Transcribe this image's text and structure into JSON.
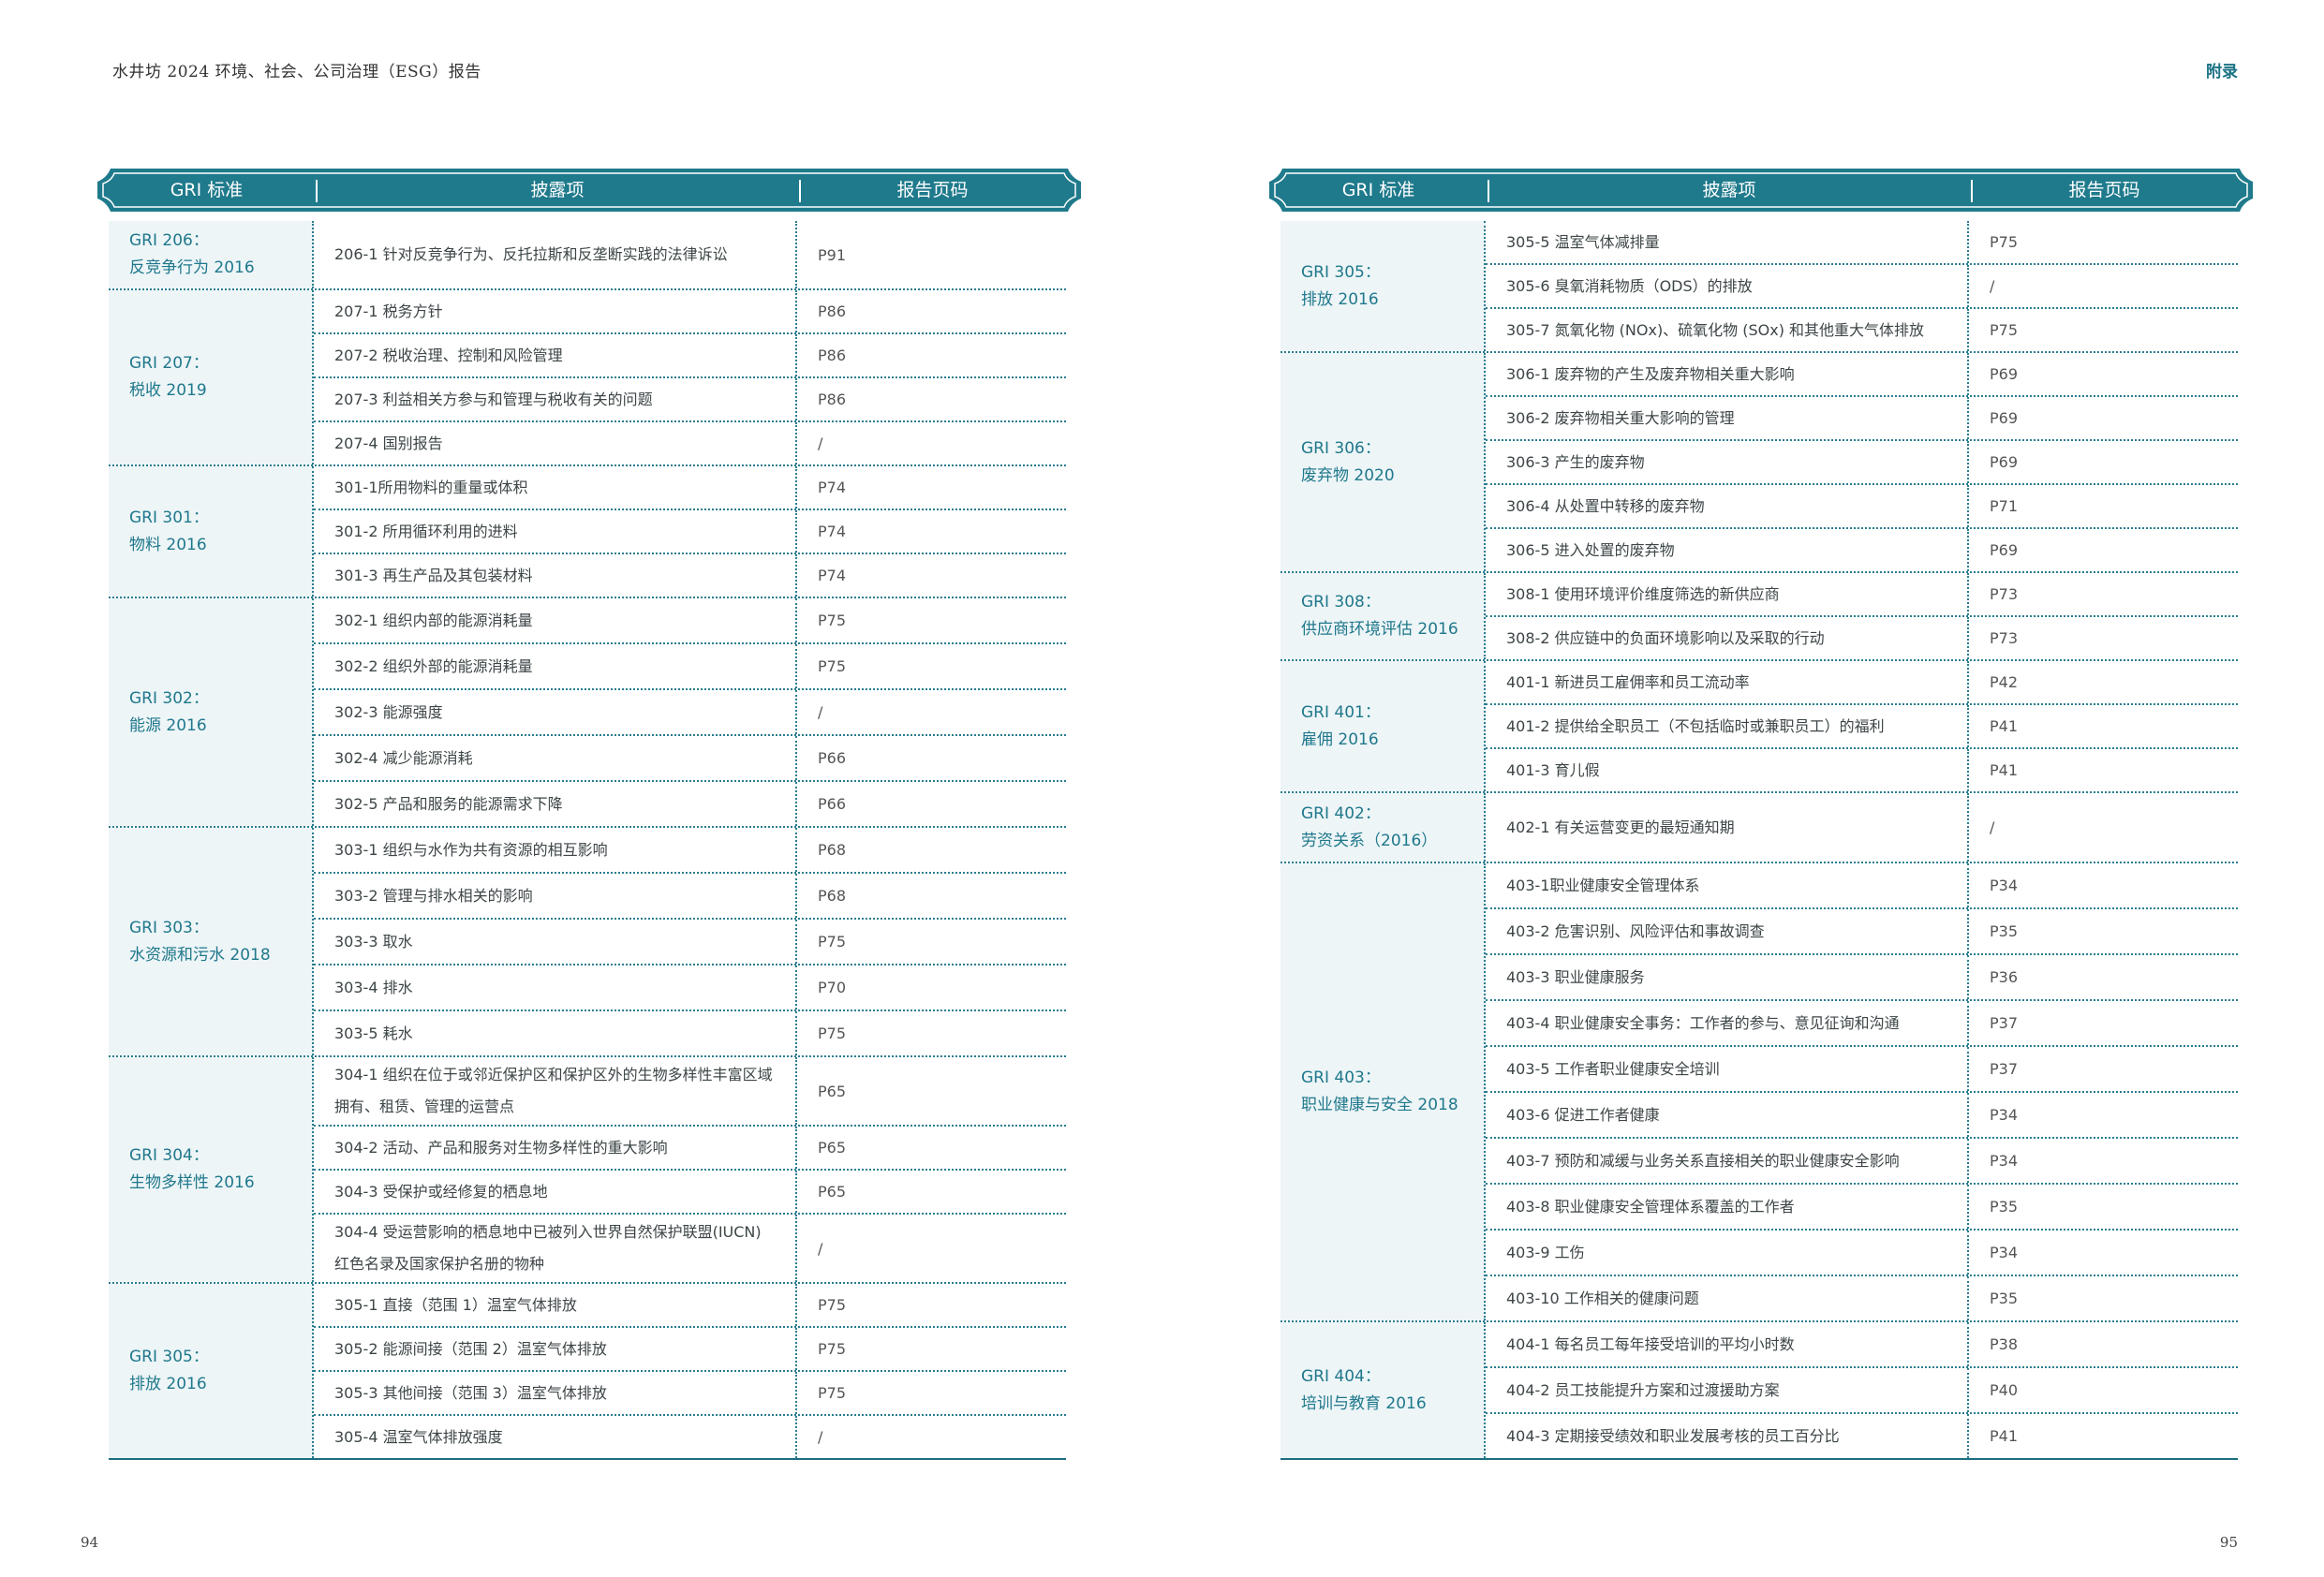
{
  "left_page": {
    "running_title": "水井坊 2024 环境、社会、公司治理（ESG）报告",
    "page_number": "94"
  },
  "right_page": {
    "section_tag": "附录",
    "page_number": "95"
  },
  "table_headers": {
    "standard": "GRI 标准",
    "disclosure": "披露项",
    "page": "报告页码"
  },
  "colors": {
    "accent": "#1f7a8c",
    "rule": "#2a7d90",
    "group_bg": "#edf5f7"
  },
  "left_groups": [
    {
      "code": "GRI 206：",
      "name": "反竞争行为 2016",
      "rows": [
        {
          "disclosure": "206-1 针对反竞争行为、反托拉斯和反垄断实践的法律诉讼",
          "page": "P91"
        }
      ]
    },
    {
      "code": "GRI 207：",
      "name": "税收 2019",
      "rows": [
        {
          "disclosure": "207-1 税务方针",
          "page": "P86"
        },
        {
          "disclosure": "207-2 税收治理、控制和风险管理",
          "page": "P86"
        },
        {
          "disclosure": "207-3 利益相关方参与和管理与税收有关的问题",
          "page": "P86"
        },
        {
          "disclosure": "207-4 国别报告",
          "page": "/"
        }
      ]
    },
    {
      "code": "GRI 301：",
      "name": "物料 2016",
      "rows": [
        {
          "disclosure": "301-1所用物料的重量或体积",
          "page": "P74"
        },
        {
          "disclosure": "301-2 所用循环利用的进料",
          "page": "P74"
        },
        {
          "disclosure": "301-3 再生产品及其包装材料",
          "page": "P74"
        }
      ]
    },
    {
      "code": "GRI 302：",
      "name": "能源 2016",
      "rows": [
        {
          "disclosure": "302-1 组织内部的能源消耗量",
          "page": "P75"
        },
        {
          "disclosure": "302-2 组织外部的能源消耗量",
          "page": "P75"
        },
        {
          "disclosure": "302-3 能源强度",
          "page": "/"
        },
        {
          "disclosure": "302-4 减少能源消耗",
          "page": "P66"
        },
        {
          "disclosure": "302-5 产品和服务的能源需求下降",
          "page": "P66"
        }
      ]
    },
    {
      "code": "GRI 303：",
      "name": "水资源和污水 2018",
      "rows": [
        {
          "disclosure": "303-1 组织与水作为共有资源的相互影响",
          "page": "P68"
        },
        {
          "disclosure": "303-2 管理与排水相关的影响",
          "page": "P68"
        },
        {
          "disclosure": "303-3 取水",
          "page": "P75"
        },
        {
          "disclosure": "303-4 排水",
          "page": "P70"
        },
        {
          "disclosure": "303-5 耗水",
          "page": "P75"
        }
      ]
    },
    {
      "code": "GRI 304：",
      "name": "生物多样性 2016",
      "rows": [
        {
          "disclosure": "304-1 组织在位于或邻近保护区和保护区外的生物多样性丰富区域拥有、租赁、管理的运营点",
          "page": "P65"
        },
        {
          "disclosure": "304-2 活动、产品和服务对生物多样性的重大影响",
          "page": "P65"
        },
        {
          "disclosure": "304-3 受保护或经修复的栖息地",
          "page": "P65"
        },
        {
          "disclosure": "304-4 受运营影响的栖息地中已被列入世界自然保护联盟(IUCN) 红色名录及国家保护名册的物种",
          "page": "/"
        }
      ]
    },
    {
      "code": "GRI 305：",
      "name": "排放 2016",
      "rows": [
        {
          "disclosure": "305-1 直接（范围 1）温室气体排放",
          "page": "P75"
        },
        {
          "disclosure": "305-2 能源间接（范围 2）温室气体排放",
          "page": "P75"
        },
        {
          "disclosure": "305-3 其他间接（范围 3）温室气体排放",
          "page": "P75"
        },
        {
          "disclosure": "305-4 温室气体排放强度",
          "page": "/"
        }
      ]
    }
  ],
  "right_groups": [
    {
      "code": "GRI 305：",
      "name": "排放 2016",
      "rows": [
        {
          "disclosure": "305-5 温室气体减排量",
          "page": "P75"
        },
        {
          "disclosure": "305-6 臭氧消耗物质（ODS）的排放",
          "page": "/"
        },
        {
          "disclosure": "305-7 氮氧化物 (NOx)、硫氧化物 (SOx) 和其他重大气体排放",
          "page": "P75"
        }
      ]
    },
    {
      "code": "GRI 306：",
      "name": "废弃物 2020",
      "rows": [
        {
          "disclosure": "306-1 废弃物的产生及废弃物相关重大影响",
          "page": "P69"
        },
        {
          "disclosure": "306-2 废弃物相关重大影响的管理",
          "page": "P69"
        },
        {
          "disclosure": "306-3 产生的废弃物",
          "page": "P69"
        },
        {
          "disclosure": "306-4 从处置中转移的废弃物",
          "page": "P71"
        },
        {
          "disclosure": "306-5 进入处置的废弃物",
          "page": "P69"
        }
      ]
    },
    {
      "code": "GRI 308：",
      "name": "供应商环境评估 2016",
      "rows": [
        {
          "disclosure": "308-1 使用环境评价维度筛选的新供应商",
          "page": "P73"
        },
        {
          "disclosure": "308-2 供应链中的负面环境影响以及采取的行动",
          "page": "P73"
        }
      ]
    },
    {
      "code": "GRI 401：",
      "name": "雇佣 2016",
      "rows": [
        {
          "disclosure": "401-1 新进员工雇佣率和员工流动率",
          "page": "P42"
        },
        {
          "disclosure": "401-2 提供给全职员工（不包括临时或兼职员工）的福利",
          "page": "P41"
        },
        {
          "disclosure": "401-3 育儿假",
          "page": "P41"
        }
      ]
    },
    {
      "code": "GRI 402：",
      "name": "劳资关系（2016）",
      "rows": [
        {
          "disclosure": "402-1 有关运营变更的最短通知期",
          "page": "/"
        }
      ]
    },
    {
      "code": "GRI 403：",
      "name": "职业健康与安全 2018",
      "rows": [
        {
          "disclosure": "403-1职业健康安全管理体系",
          "page": "P34"
        },
        {
          "disclosure": "403-2 危害识别、风险评估和事故调查",
          "page": "P35"
        },
        {
          "disclosure": "403-3 职业健康服务",
          "page": "P36"
        },
        {
          "disclosure": "403-4 职业健康安全事务：工作者的参与、意见征询和沟通",
          "page": "P37"
        },
        {
          "disclosure": "403-5 工作者职业健康安全培训",
          "page": "P37"
        },
        {
          "disclosure": "403-6 促进工作者健康",
          "page": "P34"
        },
        {
          "disclosure": "403-7 预防和减缓与业务关系直接相关的职业健康安全影响",
          "page": "P34"
        },
        {
          "disclosure": "403-8 职业健康安全管理体系覆盖的工作者",
          "page": "P35"
        },
        {
          "disclosure": "403-9 工伤",
          "page": "P34"
        },
        {
          "disclosure": "403-10 工作相关的健康问题",
          "page": "P35"
        }
      ]
    },
    {
      "code": "GRI 404：",
      "name": "培训与教育 2016",
      "rows": [
        {
          "disclosure": "404-1 每名员工每年接受培训的平均小时数",
          "page": "P38"
        },
        {
          "disclosure": "404-2 员工技能提升方案和过渡援助方案",
          "page": "P40"
        },
        {
          "disclosure": "404-3 定期接受绩效和职业发展考核的员工百分比",
          "page": "P41"
        }
      ]
    }
  ]
}
